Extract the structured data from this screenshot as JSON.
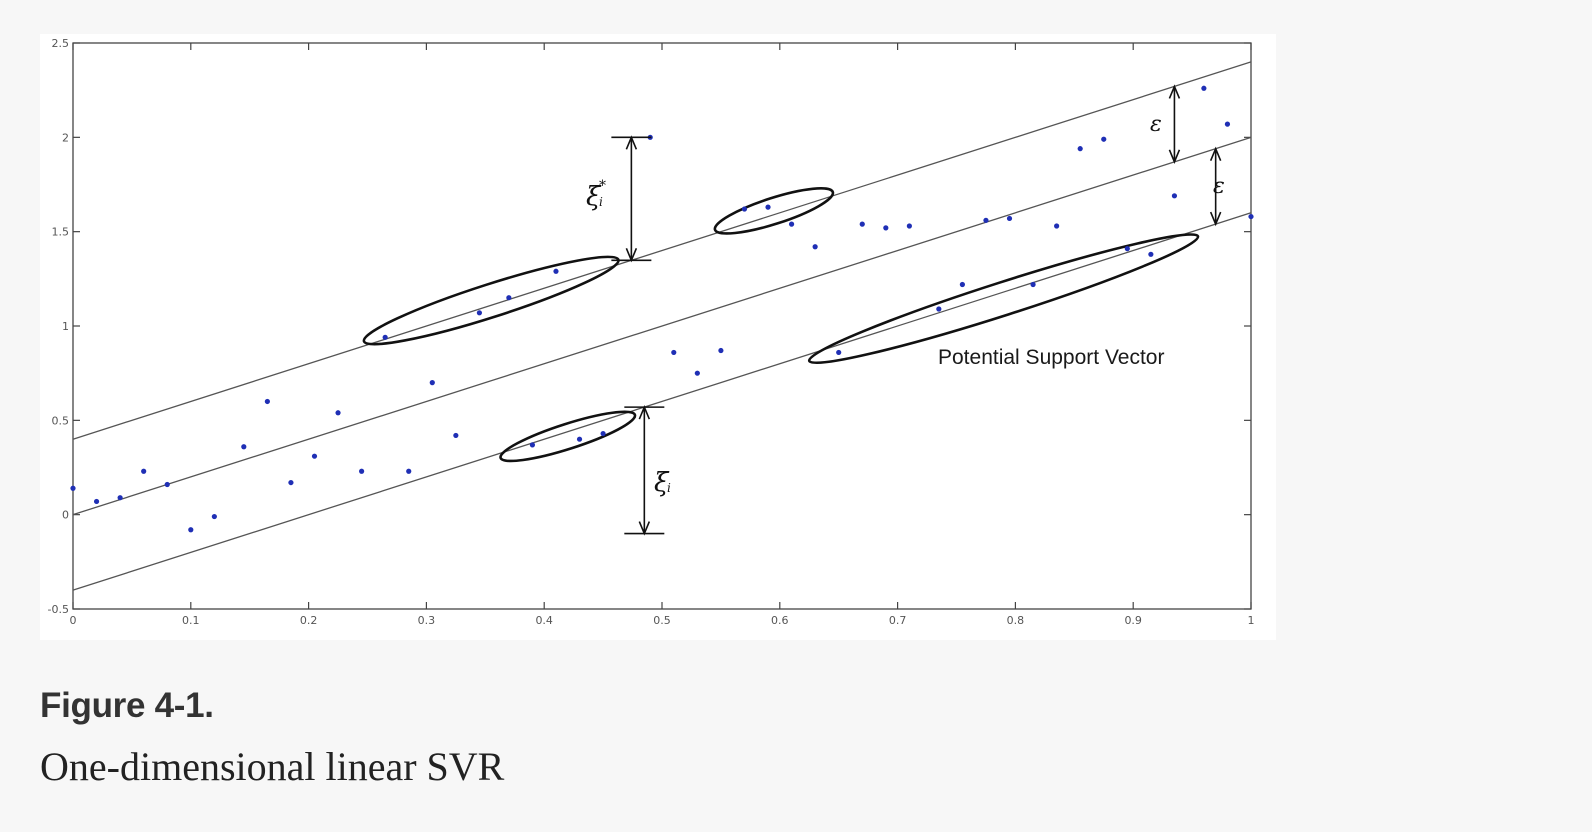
{
  "caption": {
    "label": "Figure 4-1.",
    "text": "One-dimensional linear SVR"
  },
  "chart_data": {
    "type": "scatter",
    "title": "",
    "xlabel": "",
    "ylabel": "",
    "xlim": [
      0,
      1
    ],
    "ylim": [
      -0.5,
      2.5
    ],
    "x_ticks": [
      "0",
      "0.1",
      "0.2",
      "0.3",
      "0.4",
      "0.5",
      "0.6",
      "0.7",
      "0.8",
      "0.9",
      "1"
    ],
    "y_ticks": [
      "-0.5",
      "0",
      "0.5",
      "1",
      "1.5",
      "2",
      "2.5"
    ],
    "grid": false,
    "point_color": "#1f2fb5",
    "lines": [
      {
        "slope": 2.0,
        "intercept": 0.4
      },
      {
        "slope": 2.0,
        "intercept": 0.0
      },
      {
        "slope": 2.0,
        "intercept": -0.4
      }
    ],
    "points": [
      {
        "x": 0.0,
        "y": 0.14
      },
      {
        "x": 0.02,
        "y": 0.07
      },
      {
        "x": 0.04,
        "y": 0.09
      },
      {
        "x": 0.06,
        "y": 0.23
      },
      {
        "x": 0.08,
        "y": 0.16
      },
      {
        "x": 0.1,
        "y": -0.08
      },
      {
        "x": 0.12,
        "y": -0.01
      },
      {
        "x": 0.145,
        "y": 0.36
      },
      {
        "x": 0.165,
        "y": 0.6
      },
      {
        "x": 0.185,
        "y": 0.17
      },
      {
        "x": 0.205,
        "y": 0.31
      },
      {
        "x": 0.225,
        "y": 0.54
      },
      {
        "x": 0.245,
        "y": 0.23
      },
      {
        "x": 0.265,
        "y": 0.94
      },
      {
        "x": 0.285,
        "y": 0.23
      },
      {
        "x": 0.305,
        "y": 0.7
      },
      {
        "x": 0.325,
        "y": 0.42
      },
      {
        "x": 0.345,
        "y": 1.07
      },
      {
        "x": 0.37,
        "y": 1.15
      },
      {
        "x": 0.39,
        "y": 0.37
      },
      {
        "x": 0.41,
        "y": 1.29
      },
      {
        "x": 0.43,
        "y": 0.4
      },
      {
        "x": 0.45,
        "y": 0.43
      },
      {
        "x": 0.49,
        "y": 2.0
      },
      {
        "x": 0.51,
        "y": 0.86
      },
      {
        "x": 0.53,
        "y": 0.75
      },
      {
        "x": 0.55,
        "y": 0.87
      },
      {
        "x": 0.57,
        "y": 1.62
      },
      {
        "x": 0.59,
        "y": 1.63
      },
      {
        "x": 0.61,
        "y": 1.54
      },
      {
        "x": 0.63,
        "y": 1.42
      },
      {
        "x": 0.65,
        "y": 0.86
      },
      {
        "x": 0.67,
        "y": 1.54
      },
      {
        "x": 0.69,
        "y": 1.52
      },
      {
        "x": 0.71,
        "y": 1.53
      },
      {
        "x": 0.735,
        "y": 1.09
      },
      {
        "x": 0.755,
        "y": 1.22
      },
      {
        "x": 0.775,
        "y": 1.56
      },
      {
        "x": 0.795,
        "y": 1.57
      },
      {
        "x": 0.815,
        "y": 1.22
      },
      {
        "x": 0.835,
        "y": 1.53
      },
      {
        "x": 0.855,
        "y": 1.94
      },
      {
        "x": 0.875,
        "y": 1.99
      },
      {
        "x": 0.895,
        "y": 1.41
      },
      {
        "x": 0.915,
        "y": 1.38
      },
      {
        "x": 0.935,
        "y": 1.69
      },
      {
        "x": 0.96,
        "y": 2.26
      },
      {
        "x": 0.98,
        "y": 2.07
      },
      {
        "x": 1.0,
        "y": 1.58
      }
    ],
    "annotations": {
      "support_vector_label": "Potential Support Vector",
      "epsilon": "ε",
      "xi": "ξ",
      "i_sub": "i",
      "star": "*"
    }
  }
}
